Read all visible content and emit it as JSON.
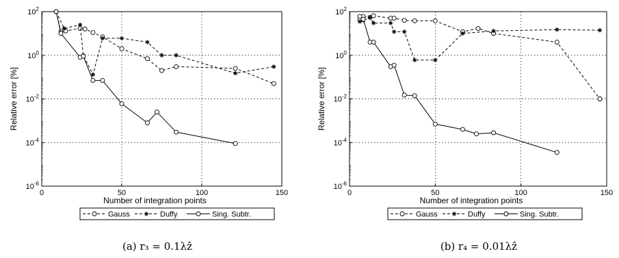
{
  "chart_data": [
    {
      "type": "line",
      "caption": "(a) r₃ = 0.1λẑ",
      "xlabel": "Number of integration points",
      "ylabel": "Relative error [%]",
      "xlim": [
        0,
        150
      ],
      "ylim": [
        1e-06,
        100
      ],
      "yscale": "log",
      "grid": true,
      "legend_position": "bottom",
      "xticks": [
        0,
        50,
        100,
        150
      ],
      "yticks": [
        {
          "value": 100,
          "base": "10",
          "exp": "2"
        },
        {
          "value": 1,
          "base": "10",
          "exp": "0"
        },
        {
          "value": 0.01,
          "base": "10",
          "exp": "-2"
        },
        {
          "value": 0.0001,
          "base": "10",
          "exp": "-4"
        },
        {
          "value": 1e-06,
          "base": "10",
          "exp": "-6"
        }
      ],
      "series": [
        {
          "name": "Gauss",
          "marker": "circle",
          "dash": "dashed",
          "x": [
            9,
            12,
            15,
            24,
            27,
            32,
            38,
            50,
            66,
            75,
            84,
            121,
            145
          ],
          "y": [
            100,
            12,
            13,
            17,
            16,
            11,
            7,
            2,
            0.7,
            0.2,
            0.3,
            0.25,
            0.05
          ]
        },
        {
          "name": "Duffy",
          "marker": "star",
          "dash": "dashed",
          "x": [
            9,
            14,
            24,
            26,
            32,
            38,
            50,
            66,
            75,
            84,
            121,
            145
          ],
          "y": [
            100,
            17,
            25,
            1,
            0.13,
            6,
            6,
            4,
            1,
            1,
            0.15,
            0.3
          ]
        },
        {
          "name": "Sing. Subtr.",
          "marker": "circle",
          "dash": "solid",
          "x": [
            9,
            12,
            24,
            26,
            32,
            38,
            50,
            66,
            72,
            84,
            121
          ],
          "y": [
            100,
            10,
            0.8,
            0.9,
            0.07,
            0.07,
            0.006,
            0.0008,
            0.0025,
            0.0003,
            9e-05
          ]
        }
      ]
    },
    {
      "type": "line",
      "caption": "(b) r₄ = 0.01λẑ",
      "xlabel": "Number of integration points",
      "ylabel": "Relative error [%]",
      "xlim": [
        0,
        150
      ],
      "ylim": [
        1e-06,
        100
      ],
      "yscale": "log",
      "grid": true,
      "legend_position": "bottom",
      "xticks": [
        0,
        50,
        100,
        150
      ],
      "yticks": [
        {
          "value": 100,
          "base": "10",
          "exp": "2"
        },
        {
          "value": 1,
          "base": "10",
          "exp": "0"
        },
        {
          "value": 0.01,
          "base": "10",
          "exp": "-2"
        },
        {
          "value": 0.0001,
          "base": "10",
          "exp": "-4"
        },
        {
          "value": 1e-06,
          "base": "10",
          "exp": "-6"
        }
      ],
      "series": [
        {
          "name": "Gauss",
          "marker": "circle",
          "dash": "dashed",
          "x": [
            6,
            8,
            12,
            14,
            24,
            26,
            32,
            38,
            50,
            66,
            75,
            84,
            121,
            146
          ],
          "y": [
            45,
            60,
            55,
            65,
            50,
            50,
            40,
            38,
            38,
            12,
            17,
            10,
            4,
            0.01
          ]
        },
        {
          "name": "Duffy",
          "marker": "star",
          "dash": "dashed",
          "x": [
            6,
            8,
            12,
            14,
            24,
            26,
            32,
            38,
            50,
            66,
            84,
            121,
            146
          ],
          "y": [
            35,
            40,
            55,
            30,
            30,
            12,
            12,
            0.6,
            0.6,
            10,
            13,
            15,
            14
          ]
        },
        {
          "name": "Sing. Subtr.",
          "marker": "circle",
          "dash": "solid",
          "x": [
            6,
            8,
            12,
            14,
            24,
            26,
            32,
            38,
            50,
            66,
            74,
            84,
            121
          ],
          "y": [
            60,
            45,
            4,
            4,
            0.3,
            0.35,
            0.015,
            0.014,
            0.0007,
            0.0004,
            0.00025,
            0.00028,
            3.5e-05
          ]
        }
      ]
    }
  ]
}
